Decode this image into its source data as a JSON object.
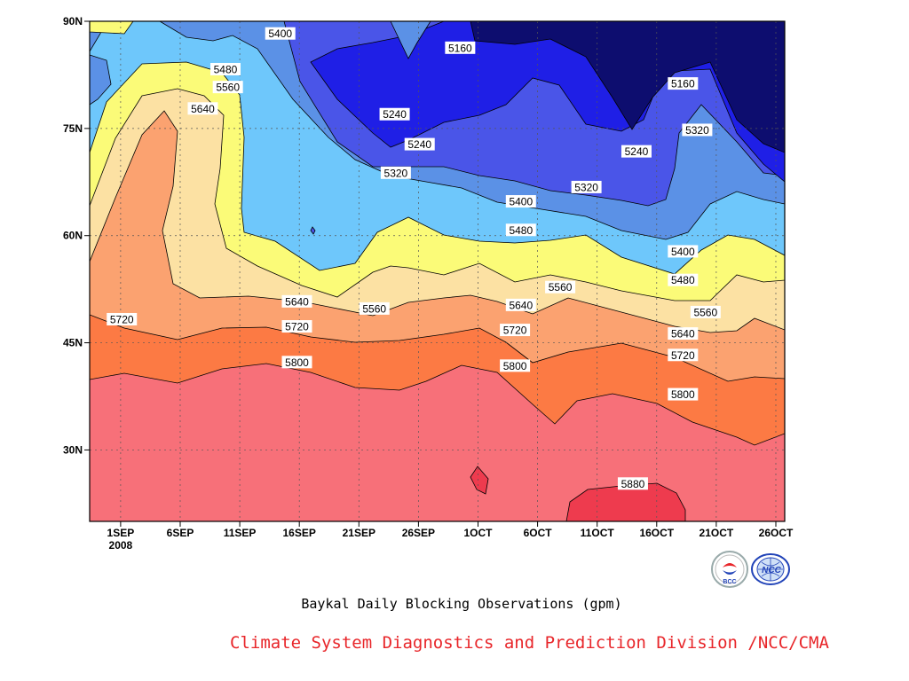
{
  "chart_data": {
    "type": "contour",
    "title": "Baykal Daily Blocking Observations (gpm)",
    "xlabel": "",
    "ylabel": "",
    "x_ticks": [
      "1SEP",
      "6SEP",
      "11SEP",
      "16SEP",
      "21SEP",
      "26SEP",
      "1OCT",
      "6OCT",
      "11OCT",
      "16OCT",
      "21OCT",
      "26OCT"
    ],
    "x_year_label": "2008",
    "y_ticks": [
      "30N",
      "45N",
      "60N",
      "75N",
      "90N"
    ],
    "y_range_deg": [
      20,
      90
    ],
    "contour_levels": [
      5160,
      5240,
      5320,
      5400,
      5480,
      5560,
      5640,
      5720,
      5800,
      5880
    ],
    "level_colors": [
      "#0d0d6f",
      "#1f1fe6",
      "#4a55e8",
      "#5b91e6",
      "#6ec7fb",
      "#fbfb78",
      "#fce1a3",
      "#fba270",
      "#fc7a44",
      "#f77079",
      "#ee3b4e"
    ],
    "contour_labels": [
      {
        "value": "5160",
        "day": 28.5,
        "lat": 86.3
      },
      {
        "value": "5160",
        "day": 47.2,
        "lat": 81.3
      },
      {
        "value": "5240",
        "day": 23.0,
        "lat": 77.0
      },
      {
        "value": "5240",
        "day": 25.1,
        "lat": 72.8
      },
      {
        "value": "5240",
        "day": 43.3,
        "lat": 71.8
      },
      {
        "value": "5320",
        "day": 23.1,
        "lat": 68.8
      },
      {
        "value": "5320",
        "day": 39.1,
        "lat": 66.8
      },
      {
        "value": "5320",
        "day": 48.4,
        "lat": 74.8
      },
      {
        "value": "5400",
        "day": 13.4,
        "lat": 88.3
      },
      {
        "value": "5400",
        "day": 33.6,
        "lat": 64.8
      },
      {
        "value": "5400",
        "day": 47.2,
        "lat": 57.8
      },
      {
        "value": "5480",
        "day": 8.8,
        "lat": 83.3
      },
      {
        "value": "5480",
        "day": 33.6,
        "lat": 60.8
      },
      {
        "value": "5480",
        "day": 47.2,
        "lat": 53.8
      },
      {
        "value": "5560",
        "day": 9.0,
        "lat": 80.8
      },
      {
        "value": "5560",
        "day": 21.3,
        "lat": 49.8
      },
      {
        "value": "5560",
        "day": 36.9,
        "lat": 52.8
      },
      {
        "value": "5560",
        "day": 49.1,
        "lat": 49.3
      },
      {
        "value": "5640",
        "day": 6.9,
        "lat": 77.8
      },
      {
        "value": "5640",
        "day": 14.8,
        "lat": 50.8
      },
      {
        "value": "5640",
        "day": 33.6,
        "lat": 50.3
      },
      {
        "value": "5640",
        "day": 47.2,
        "lat": 46.3
      },
      {
        "value": "5720",
        "day": 0.1,
        "lat": 48.3
      },
      {
        "value": "5720",
        "day": 14.8,
        "lat": 47.3
      },
      {
        "value": "5720",
        "day": 33.1,
        "lat": 46.8
      },
      {
        "value": "5720",
        "day": 47.2,
        "lat": 43.3
      },
      {
        "value": "5800",
        "day": 14.8,
        "lat": 42.3
      },
      {
        "value": "5800",
        "day": 33.1,
        "lat": 41.8
      },
      {
        "value": "5800",
        "day": 47.2,
        "lat": 37.8
      },
      {
        "value": "5880",
        "day": 43.0,
        "lat": 25.3
      }
    ],
    "grid": true
  },
  "caption": "Baykal Daily Blocking Observations (gpm)",
  "credit": "Climate System Diagnostics and Prediction Division /NCC/CMA",
  "logos": {
    "bcc_text": "BCC",
    "ncc_text": "NCC"
  }
}
